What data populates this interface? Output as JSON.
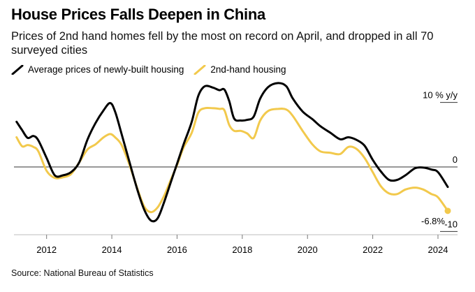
{
  "title": "House Prices Falls Deepen in China",
  "subtitle": "Prices of 2nd hand homes fell by the most on record on April, and dropped in all 70 surveyed cities",
  "source": "Source: National Bureau of Statistics",
  "colors": {
    "new": "#000000",
    "second": "#f2c94c",
    "zero_line": "#333333"
  },
  "chart_data": {
    "type": "line",
    "title": "House Prices Falls Deepen in China",
    "ylabel": "% y/y",
    "ylim": [
      -10,
      10
    ],
    "xlim": [
      2011.0,
      2024.6
    ],
    "x_ticks": [
      {
        "value": 2012,
        "label": "2012"
      },
      {
        "value": 2014,
        "label": "2014"
      },
      {
        "value": 2016,
        "label": "2016"
      },
      {
        "value": 2018,
        "label": "2018"
      },
      {
        "value": 2020,
        "label": "2020"
      },
      {
        "value": 2022,
        "label": "2022"
      },
      {
        "value": 2024,
        "label": "2024"
      }
    ],
    "y_ticks": [
      {
        "value": 10,
        "label": "10 % y/y"
      },
      {
        "value": 0,
        "label": "0"
      },
      {
        "value": -10,
        "label": "-10"
      }
    ],
    "annotation": {
      "x": 2024.3,
      "y": -6.8,
      "label": "-6.8%"
    },
    "series": [
      {
        "name": "Average prices of newly-built housing",
        "color": "#000000",
        "points": [
          [
            2011.08,
            7.0
          ],
          [
            2011.25,
            5.7
          ],
          [
            2011.42,
            4.5
          ],
          [
            2011.6,
            4.8
          ],
          [
            2011.75,
            4.1
          ],
          [
            2012.0,
            1.4
          ],
          [
            2012.25,
            -1.3
          ],
          [
            2012.5,
            -1.3
          ],
          [
            2012.75,
            -0.8
          ],
          [
            2013.0,
            0.7
          ],
          [
            2013.25,
            4.2
          ],
          [
            2013.5,
            6.8
          ],
          [
            2013.75,
            8.8
          ],
          [
            2013.95,
            9.9
          ],
          [
            2014.1,
            8.6
          ],
          [
            2014.3,
            5.1
          ],
          [
            2014.55,
            0.6
          ],
          [
            2014.8,
            -3.8
          ],
          [
            2015.0,
            -6.7
          ],
          [
            2015.2,
            -8.3
          ],
          [
            2015.4,
            -8.0
          ],
          [
            2015.6,
            -5.5
          ],
          [
            2015.8,
            -2.5
          ],
          [
            2016.0,
            0.5
          ],
          [
            2016.2,
            3.5
          ],
          [
            2016.45,
            7.0
          ],
          [
            2016.65,
            11.0
          ],
          [
            2016.85,
            12.5
          ],
          [
            2017.1,
            12.3
          ],
          [
            2017.3,
            11.9
          ],
          [
            2017.45,
            12.0
          ],
          [
            2017.6,
            10.2
          ],
          [
            2017.75,
            7.5
          ],
          [
            2017.95,
            7.2
          ],
          [
            2018.15,
            7.3
          ],
          [
            2018.35,
            7.8
          ],
          [
            2018.55,
            10.6
          ],
          [
            2018.8,
            12.4
          ],
          [
            2019.1,
            13.0
          ],
          [
            2019.35,
            12.5
          ],
          [
            2019.55,
            10.6
          ],
          [
            2019.85,
            8.6
          ],
          [
            2020.15,
            7.4
          ],
          [
            2020.4,
            6.3
          ],
          [
            2020.7,
            5.3
          ],
          [
            2021.0,
            4.3
          ],
          [
            2021.25,
            4.6
          ],
          [
            2021.5,
            4.2
          ],
          [
            2021.75,
            3.3
          ],
          [
            2022.0,
            1.1
          ],
          [
            2022.25,
            -0.7
          ],
          [
            2022.5,
            -2.0
          ],
          [
            2022.75,
            -2.0
          ],
          [
            2023.0,
            -1.3
          ],
          [
            2023.3,
            -0.2
          ],
          [
            2023.55,
            -0.1
          ],
          [
            2023.8,
            -0.4
          ],
          [
            2024.0,
            -0.8
          ],
          [
            2024.3,
            -3.1
          ]
        ]
      },
      {
        "name": "2nd-hand housing",
        "color": "#f2c94c",
        "points": [
          [
            2011.08,
            4.6
          ],
          [
            2011.25,
            3.2
          ],
          [
            2011.42,
            3.4
          ],
          [
            2011.6,
            3.1
          ],
          [
            2011.75,
            2.4
          ],
          [
            2012.0,
            -0.6
          ],
          [
            2012.25,
            -1.7
          ],
          [
            2012.5,
            -1.6
          ],
          [
            2012.75,
            -1.1
          ],
          [
            2013.0,
            0.7
          ],
          [
            2013.25,
            2.7
          ],
          [
            2013.5,
            3.5
          ],
          [
            2013.75,
            4.6
          ],
          [
            2013.95,
            5.1
          ],
          [
            2014.1,
            4.6
          ],
          [
            2014.3,
            3.4
          ],
          [
            2014.55,
            0.2
          ],
          [
            2014.8,
            -3.6
          ],
          [
            2015.0,
            -6.2
          ],
          [
            2015.2,
            -7.0
          ],
          [
            2015.4,
            -6.3
          ],
          [
            2015.6,
            -4.5
          ],
          [
            2015.8,
            -2.1
          ],
          [
            2016.0,
            0.3
          ],
          [
            2016.2,
            3.0
          ],
          [
            2016.45,
            5.3
          ],
          [
            2016.65,
            8.4
          ],
          [
            2016.85,
            9.1
          ],
          [
            2017.1,
            9.1
          ],
          [
            2017.3,
            9.0
          ],
          [
            2017.45,
            8.8
          ],
          [
            2017.6,
            6.5
          ],
          [
            2017.75,
            5.6
          ],
          [
            2017.95,
            5.6
          ],
          [
            2018.15,
            5.2
          ],
          [
            2018.35,
            4.5
          ],
          [
            2018.55,
            7.2
          ],
          [
            2018.8,
            8.7
          ],
          [
            2019.1,
            9.0
          ],
          [
            2019.35,
            8.9
          ],
          [
            2019.55,
            7.9
          ],
          [
            2019.85,
            5.6
          ],
          [
            2020.15,
            3.5
          ],
          [
            2020.4,
            2.4
          ],
          [
            2020.7,
            2.2
          ],
          [
            2021.0,
            2.0
          ],
          [
            2021.25,
            3.1
          ],
          [
            2021.5,
            2.8
          ],
          [
            2021.75,
            1.4
          ],
          [
            2022.0,
            -0.8
          ],
          [
            2022.25,
            -3.0
          ],
          [
            2022.5,
            -4.1
          ],
          [
            2022.75,
            -4.2
          ],
          [
            2023.0,
            -3.5
          ],
          [
            2023.3,
            -3.2
          ],
          [
            2023.55,
            -3.5
          ],
          [
            2023.8,
            -4.2
          ],
          [
            2024.0,
            -4.7
          ],
          [
            2024.3,
            -6.8
          ]
        ]
      }
    ]
  }
}
